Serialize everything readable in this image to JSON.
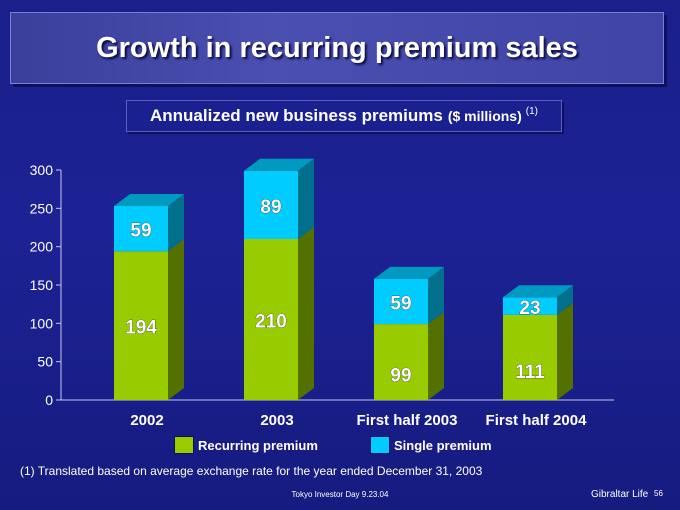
{
  "slide": {
    "title": "Growth in recurring premium sales",
    "subtitle": "Annualized new business premiums",
    "subtitle_unit": "($ millions)",
    "subtitle_note": "(1)",
    "footnote": "(1) Translated based on average exchange rate for the year ended December 31, 2003",
    "footer_center": "Tokyo Investor Day 9.23.04",
    "footer_brand": "Gibraltar Life",
    "page_number": "56"
  },
  "chart_data": {
    "type": "bar",
    "stacked": true,
    "categories": [
      "2002",
      "2003",
      "First half 2003",
      "First half 2004"
    ],
    "series": [
      {
        "name": "Recurring premium",
        "values": [
          194,
          210,
          99,
          111
        ],
        "color": "#99cc00"
      },
      {
        "name": "Single premium",
        "values": [
          59,
          89,
          59,
          23
        ],
        "color": "#00ccff"
      }
    ],
    "ylim": [
      0,
      300
    ],
    "yticks": [
      "0",
      "50",
      "100",
      "150",
      "200",
      "250",
      "300"
    ],
    "legend": "bottom",
    "grid": false
  }
}
